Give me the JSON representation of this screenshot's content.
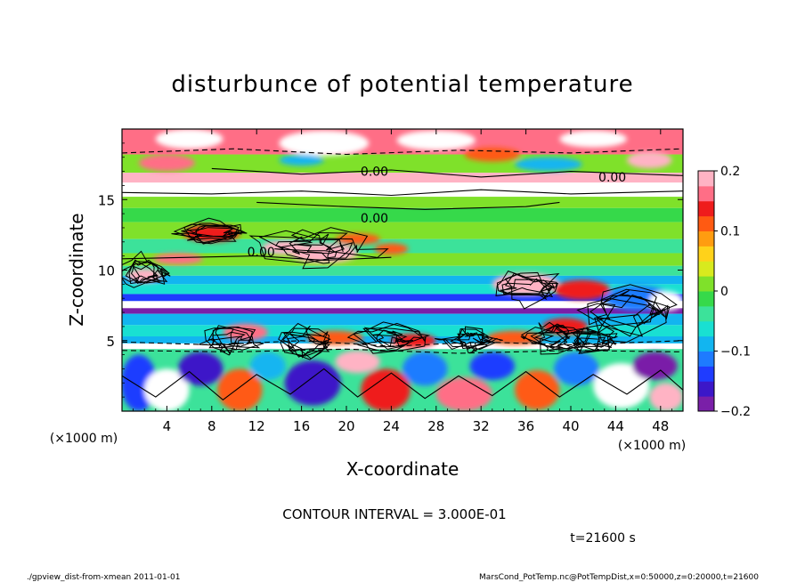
{
  "chart_data": {
    "type": "heatmap",
    "title": "disturbunce of potential temperature",
    "xlabel": "X-coordinate",
    "ylabel": "Z-coordinate",
    "x_unit": "(×1000 m)",
    "y_unit": "(×1000 m)",
    "xlim": [
      0,
      50
    ],
    "ylim": [
      0,
      20
    ],
    "xticks": [
      4,
      8,
      12,
      16,
      20,
      24,
      28,
      32,
      36,
      40,
      44,
      48
    ],
    "yticks": [
      5,
      10,
      15
    ],
    "colorbar": {
      "range": [
        -0.2,
        0.2
      ],
      "ticks": [
        "0.2",
        "0.1",
        "0",
        "−0.1",
        "−0.2"
      ],
      "tick_values": [
        0.2,
        0.1,
        0,
        -0.1,
        -0.2
      ],
      "colors": [
        "#7a1fa8",
        "#3c17c8",
        "#1f3cff",
        "#1e7bff",
        "#12b5f0",
        "#19e0d2",
        "#3ce29a",
        "#36d94a",
        "#7fe12a",
        "#d8ea1e",
        "#ffd21a",
        "#ff9c10",
        "#ff5a12",
        "#ef1c1c",
        "#ff6e86",
        "#ffb3c4"
      ]
    },
    "contour_labels": [
      {
        "text": "0.00",
        "x": 22.5,
        "z": 17.0
      },
      {
        "text": "0.00",
        "x": 22.5,
        "z": 13.7
      },
      {
        "text": "0.00",
        "x": 43.7,
        "z": 16.6
      },
      {
        "text": "0.00",
        "x": 12.4,
        "z": 11.3
      }
    ],
    "rows": [
      {
        "z0": 18.2,
        "z1": 20.0,
        "v": 0.16
      },
      {
        "z0": 16.9,
        "z1": 18.2,
        "v": 0.02
      },
      {
        "z0": 16.2,
        "z1": 16.9,
        "v": 0.2
      },
      {
        "z0": 15.2,
        "z1": 16.2,
        "v": 0.22
      },
      {
        "z0": 14.4,
        "z1": 15.2,
        "v": 0.0
      },
      {
        "z0": 13.4,
        "z1": 14.4,
        "v": -0.02
      },
      {
        "z0": 12.2,
        "z1": 13.4,
        "v": 0.005
      },
      {
        "z0": 11.2,
        "z1": 12.2,
        "v": -0.03
      },
      {
        "z0": 10.3,
        "z1": 11.2,
        "v": 0.0
      },
      {
        "z0": 9.6,
        "z1": 10.3,
        "v": -0.05
      },
      {
        "z0": 9.0,
        "z1": 9.6,
        "v": -0.09
      },
      {
        "z0": 8.3,
        "z1": 9.0,
        "v": -0.06
      },
      {
        "z0": 7.8,
        "z1": 8.3,
        "v": -0.13
      },
      {
        "z0": 7.3,
        "z1": 7.8,
        "v": 0.25
      },
      {
        "z0": 6.9,
        "z1": 7.3,
        "v": -0.19
      },
      {
        "z0": 6.1,
        "z1": 6.9,
        "v": -0.1
      },
      {
        "z0": 5.3,
        "z1": 6.1,
        "v": -0.06
      },
      {
        "z0": 4.8,
        "z1": 5.3,
        "v": -0.08
      },
      {
        "z0": 4.4,
        "z1": 4.8,
        "v": 0.25
      },
      {
        "z0": 0.0,
        "z1": 4.4,
        "v": -0.03
      }
    ],
    "patches": [
      {
        "x": 6.0,
        "z": 19.3,
        "rx": 3.0,
        "rz": 0.7,
        "v": 0.25
      },
      {
        "x": 18.0,
        "z": 19.0,
        "rx": 4.0,
        "rz": 0.9,
        "v": 0.25
      },
      {
        "x": 28.0,
        "z": 19.2,
        "rx": 3.5,
        "rz": 0.7,
        "v": 0.25
      },
      {
        "x": 42.0,
        "z": 19.3,
        "rx": 3.0,
        "rz": 0.6,
        "v": 0.25
      },
      {
        "x": 33.0,
        "z": 18.2,
        "rx": 2.5,
        "rz": 0.5,
        "v": 0.12
      },
      {
        "x": 4.0,
        "z": 17.6,
        "rx": 2.5,
        "rz": 0.6,
        "v": 0.16
      },
      {
        "x": 16.0,
        "z": 17.8,
        "rx": 2.0,
        "rz": 0.4,
        "v": -0.1
      },
      {
        "x": 38.0,
        "z": 17.5,
        "rx": 3.0,
        "rz": 0.5,
        "v": -0.08
      },
      {
        "x": 47.0,
        "z": 17.8,
        "rx": 2.0,
        "rz": 0.6,
        "v": 0.2
      },
      {
        "x": 8.0,
        "z": 12.6,
        "rx": 2.5,
        "rz": 0.6,
        "v": 0.15
      },
      {
        "x": 14.5,
        "z": 11.6,
        "rx": 2.0,
        "rz": 0.5,
        "v": 0.2
      },
      {
        "x": 18.0,
        "z": 11.2,
        "rx": 3.0,
        "rz": 0.7,
        "v": 0.18
      },
      {
        "x": 21.0,
        "z": 12.2,
        "rx": 2.0,
        "rz": 0.4,
        "v": 0.12
      },
      {
        "x": 5.0,
        "z": 10.8,
        "rx": 2.2,
        "rz": 0.4,
        "v": 0.16
      },
      {
        "x": 2.0,
        "z": 9.6,
        "rx": 1.6,
        "rz": 0.5,
        "v": 0.2
      },
      {
        "x": 24.0,
        "z": 11.5,
        "rx": 1.5,
        "rz": 0.4,
        "v": 0.1
      },
      {
        "x": 36.0,
        "z": 9.0,
        "rx": 3.0,
        "rz": 0.8,
        "v": 0.18
      },
      {
        "x": 41.0,
        "z": 8.6,
        "rx": 2.5,
        "rz": 0.7,
        "v": 0.14
      },
      {
        "x": 46.0,
        "z": 8.0,
        "rx": 3.0,
        "rz": 0.9,
        "v": -0.12
      },
      {
        "x": 48.5,
        "z": 7.8,
        "rx": 1.5,
        "rz": 0.7,
        "v": 0.22
      },
      {
        "x": 39.5,
        "z": 6.0,
        "rx": 2.0,
        "rz": 0.6,
        "v": 0.15
      },
      {
        "x": 11.0,
        "z": 5.6,
        "rx": 2.0,
        "rz": 0.6,
        "v": 0.17
      },
      {
        "x": 19.0,
        "z": 5.2,
        "rx": 2.5,
        "rz": 0.5,
        "v": 0.12
      },
      {
        "x": 26.0,
        "z": 5.0,
        "rx": 2.0,
        "rz": 0.5,
        "v": 0.14
      },
      {
        "x": 35.0,
        "z": 5.2,
        "rx": 2.5,
        "rz": 0.5,
        "v": 0.1
      },
      {
        "x": 1.5,
        "z": 2.0,
        "rx": 1.6,
        "rz": 2.0,
        "v": -0.14
      },
      {
        "x": 4.0,
        "z": 1.5,
        "rx": 2.0,
        "rz": 1.5,
        "v": 0.25
      },
      {
        "x": 7.0,
        "z": 3.0,
        "rx": 2.0,
        "rz": 1.2,
        "v": -0.16
      },
      {
        "x": 10.5,
        "z": 1.5,
        "rx": 2.0,
        "rz": 1.5,
        "v": 0.12
      },
      {
        "x": 13.0,
        "z": 3.2,
        "rx": 1.6,
        "rz": 1.0,
        "v": -0.1
      },
      {
        "x": 17.0,
        "z": 2.0,
        "rx": 2.5,
        "rz": 1.6,
        "v": -0.17
      },
      {
        "x": 21.0,
        "z": 3.5,
        "rx": 2.0,
        "rz": 0.8,
        "v": 0.18
      },
      {
        "x": 23.5,
        "z": 1.5,
        "rx": 2.2,
        "rz": 1.5,
        "v": 0.13
      },
      {
        "x": 27.0,
        "z": 3.0,
        "rx": 2.0,
        "rz": 1.2,
        "v": -0.12
      },
      {
        "x": 30.5,
        "z": 1.2,
        "rx": 2.5,
        "rz": 1.2,
        "v": 0.16
      },
      {
        "x": 33.0,
        "z": 3.2,
        "rx": 2.0,
        "rz": 1.0,
        "v": -0.15
      },
      {
        "x": 37.0,
        "z": 1.5,
        "rx": 2.0,
        "rz": 1.4,
        "v": 0.1
      },
      {
        "x": 40.5,
        "z": 3.0,
        "rx": 2.0,
        "rz": 1.2,
        "v": -0.12
      },
      {
        "x": 44.5,
        "z": 1.8,
        "rx": 2.5,
        "rz": 1.6,
        "v": 0.25
      },
      {
        "x": 47.5,
        "z": 3.2,
        "rx": 2.0,
        "rz": 1.0,
        "v": -0.18
      },
      {
        "x": 48.5,
        "z": 1.0,
        "rx": 1.5,
        "rz": 1.0,
        "v": 0.18
      }
    ],
    "contour_paths": [
      {
        "style": "solid",
        "points": [
          [
            0,
            15.5
          ],
          [
            8,
            15.4
          ],
          [
            16,
            15.6
          ],
          [
            24,
            15.3
          ],
          [
            32,
            15.7
          ],
          [
            40,
            15.4
          ],
          [
            50,
            15.6
          ]
        ]
      },
      {
        "style": "solid",
        "points": [
          [
            12,
            14.8
          ],
          [
            20,
            14.5
          ],
          [
            27,
            14.3
          ],
          [
            36,
            14.5
          ],
          [
            39,
            14.8
          ]
        ]
      },
      {
        "style": "solid",
        "points": [
          [
            8,
            17.2
          ],
          [
            16,
            16.8
          ],
          [
            24,
            17.1
          ],
          [
            32,
            16.6
          ],
          [
            40,
            17.0
          ],
          [
            50,
            16.7
          ]
        ]
      },
      {
        "style": "dashed",
        "points": [
          [
            0,
            18.3
          ],
          [
            10,
            18.6
          ],
          [
            20,
            18.2
          ],
          [
            30,
            18.5
          ],
          [
            40,
            18.3
          ],
          [
            50,
            18.6
          ]
        ]
      },
      {
        "style": "dashed",
        "points": [
          [
            0,
            4.9
          ],
          [
            8,
            4.7
          ],
          [
            16,
            5.0
          ],
          [
            24,
            4.6
          ],
          [
            32,
            4.9
          ],
          [
            40,
            4.7
          ],
          [
            50,
            5.0
          ]
        ]
      },
      {
        "style": "dashed",
        "points": [
          [
            0,
            4.3
          ],
          [
            10,
            4.2
          ],
          [
            20,
            4.4
          ],
          [
            30,
            4.1
          ],
          [
            40,
            4.3
          ],
          [
            50,
            4.2
          ]
        ]
      },
      {
        "style": "solid",
        "points": [
          [
            0,
            10.8
          ],
          [
            6,
            10.9
          ],
          [
            12,
            11.0
          ],
          [
            18,
            10.7
          ],
          [
            24,
            10.9
          ]
        ]
      },
      {
        "style": "solid",
        "points": [
          [
            0,
            2.5
          ],
          [
            3,
            1.0
          ],
          [
            6,
            2.8
          ],
          [
            9,
            0.8
          ],
          [
            12,
            2.6
          ],
          [
            15,
            1.2
          ],
          [
            18,
            3.0
          ],
          [
            21,
            1.0
          ],
          [
            24,
            2.7
          ],
          [
            27,
            0.9
          ],
          [
            30,
            2.5
          ],
          [
            33,
            1.1
          ],
          [
            36,
            2.8
          ],
          [
            39,
            1.0
          ],
          [
            42,
            2.6
          ],
          [
            45,
            1.2
          ],
          [
            48,
            2.9
          ],
          [
            50,
            1.5
          ]
        ]
      }
    ],
    "scribbles": [
      {
        "x": 9.5,
        "z": 5.0,
        "rx": 2.5,
        "rz": 1.0
      },
      {
        "x": 16.5,
        "z": 4.8,
        "rx": 3.0,
        "rz": 1.2
      },
      {
        "x": 24.0,
        "z": 5.2,
        "rx": 3.0,
        "rz": 1.0
      },
      {
        "x": 31.0,
        "z": 5.0,
        "rx": 2.5,
        "rz": 1.0
      },
      {
        "x": 38.5,
        "z": 5.3,
        "rx": 3.0,
        "rz": 1.2
      },
      {
        "x": 45.0,
        "z": 7.0,
        "rx": 4.0,
        "rz": 1.8
      },
      {
        "x": 42.0,
        "z": 5.0,
        "rx": 3.0,
        "rz": 1.0
      },
      {
        "x": 17.0,
        "z": 11.6,
        "rx": 5.0,
        "rz": 1.4
      },
      {
        "x": 8.0,
        "z": 12.6,
        "rx": 3.5,
        "rz": 0.8
      },
      {
        "x": 2.0,
        "z": 9.8,
        "rx": 2.0,
        "rz": 1.2
      },
      {
        "x": 36.0,
        "z": 8.8,
        "rx": 3.5,
        "rz": 1.2
      }
    ]
  },
  "contour_interval": "CONTOUR INTERVAL = 3.000E-01",
  "time_label": "t=21600 s",
  "footer_left": "./gpview_dist-from-xmean  2011-01-01",
  "footer_right": "MarsCond_PotTemp.nc@PotTempDist,x=0:50000,z=0:20000,t=21600"
}
